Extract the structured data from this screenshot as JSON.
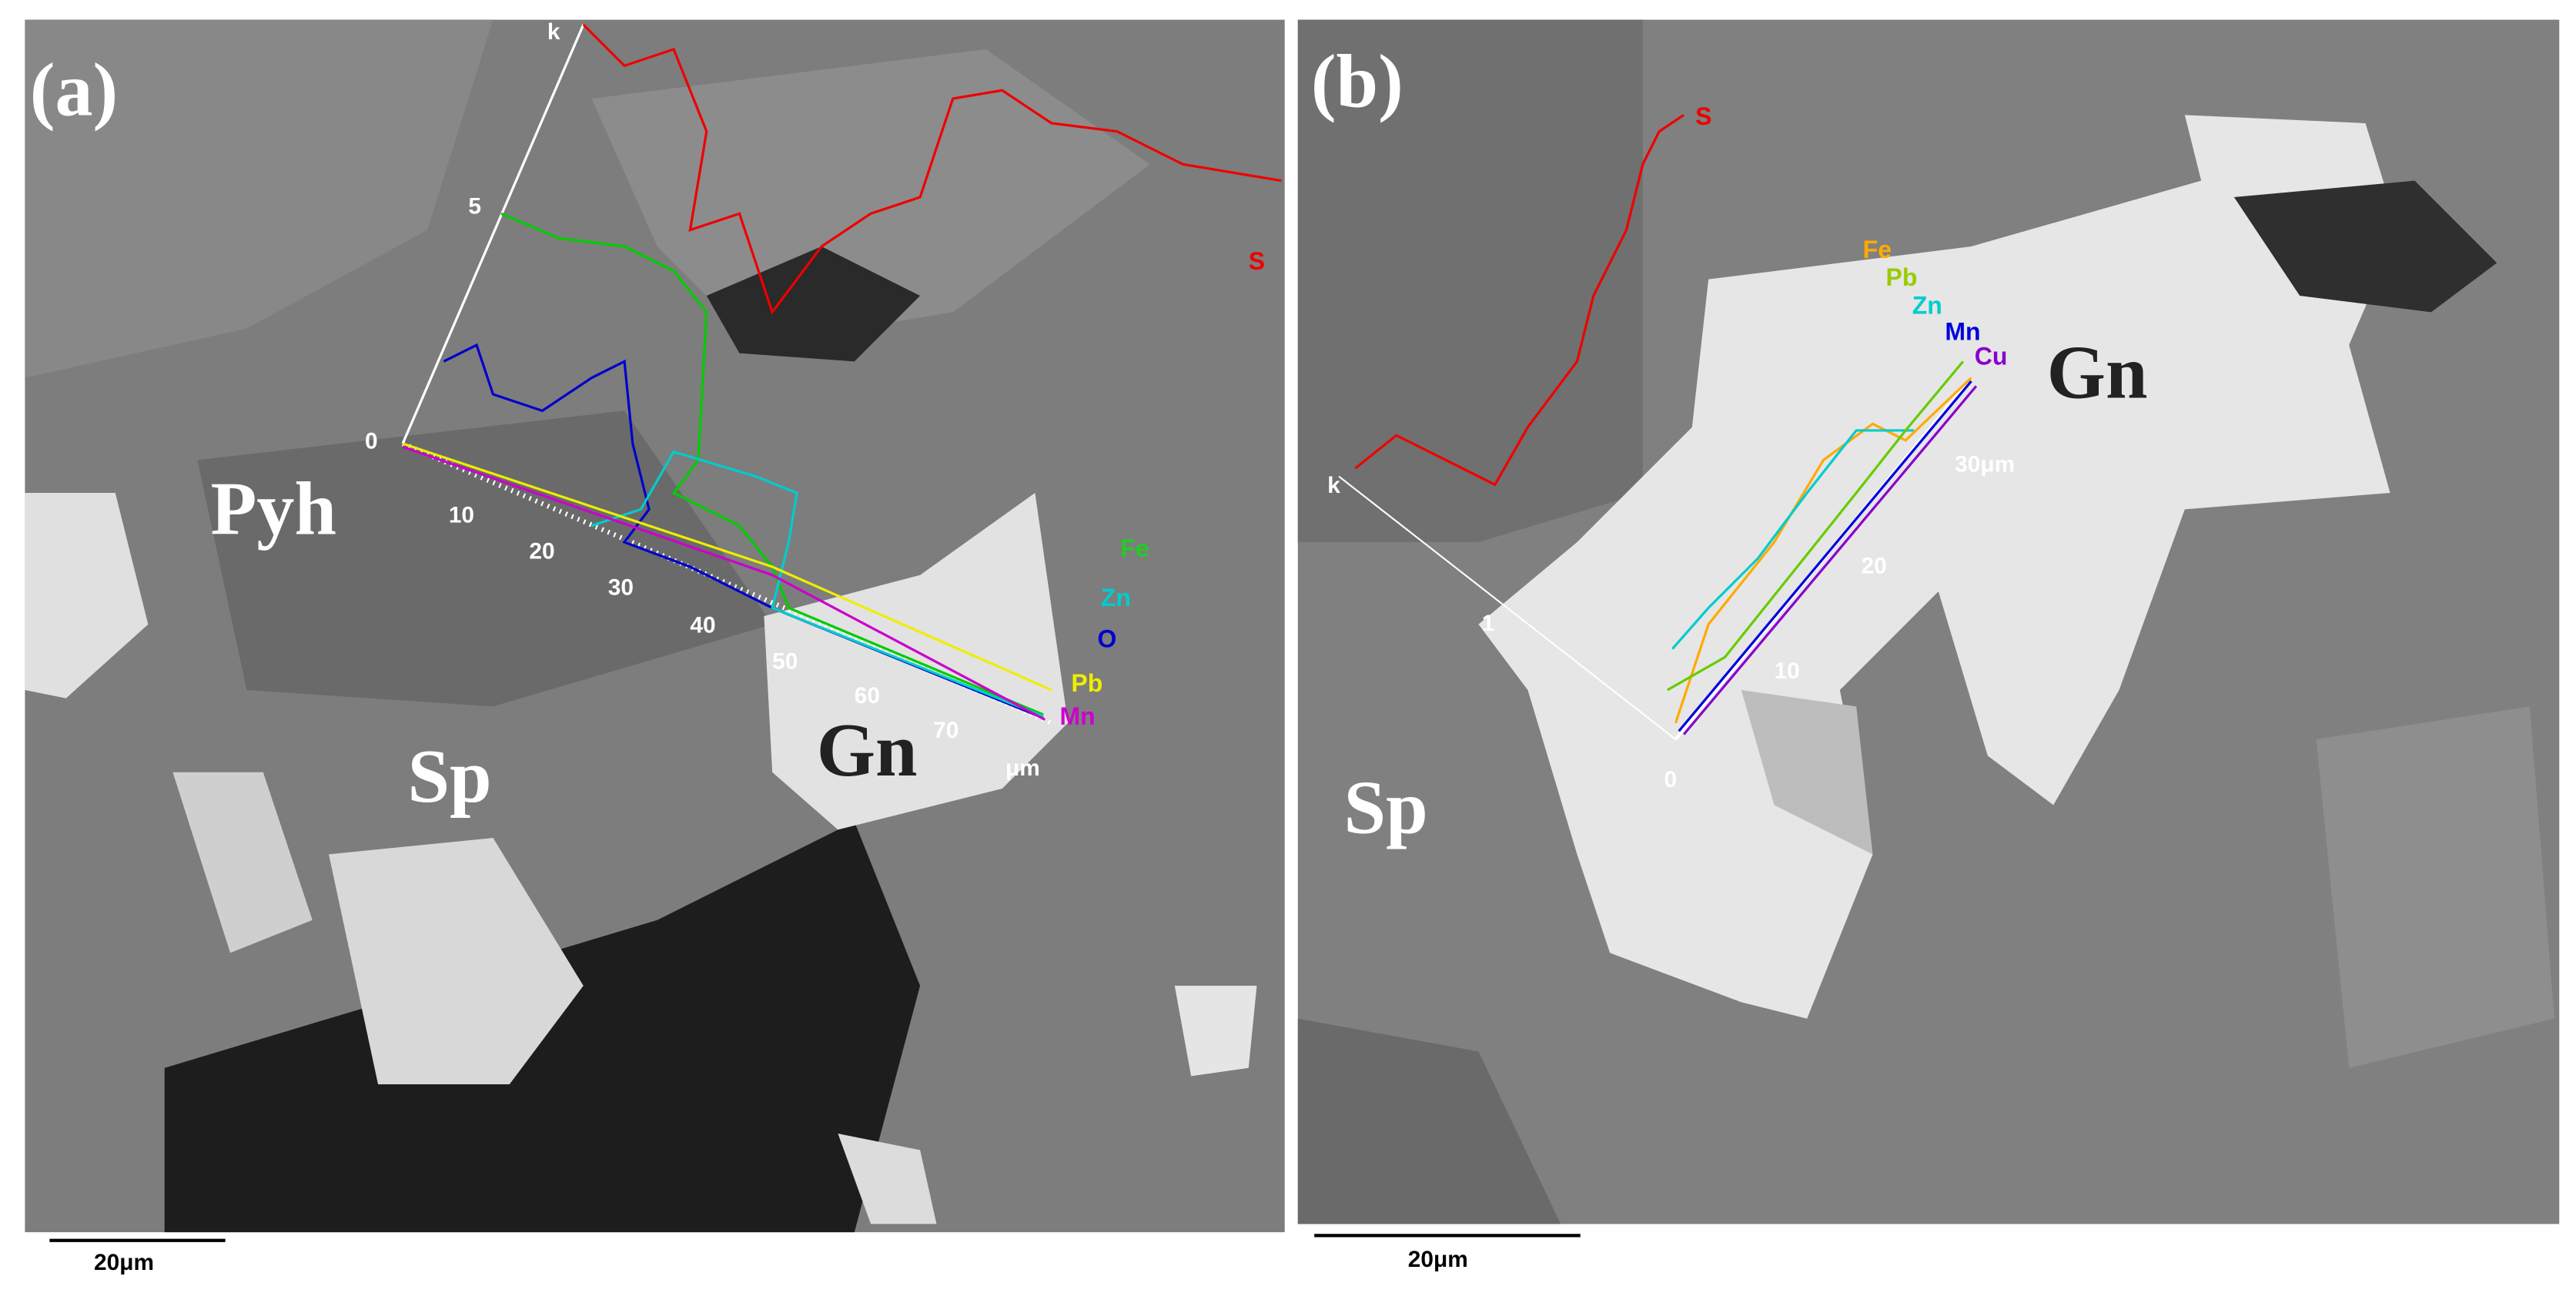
{
  "panels": [
    {
      "label": "(a)",
      "minerals": [
        "Pyh",
        "Sp",
        "Gn"
      ],
      "elements": [
        "S",
        "Fe",
        "Zn",
        "O",
        "Pb",
        "Mn"
      ],
      "scan_ticks": [
        "k",
        "5",
        "0"
      ],
      "distance_ticks": [
        "10",
        "20",
        "30",
        "40",
        "50",
        "60",
        "70"
      ],
      "distance_unit": "μm",
      "scale_bar": "20μm"
    },
    {
      "label": "(b)",
      "minerals": [
        "Gn",
        "Sp"
      ],
      "elements": [
        "S",
        "Fe",
        "Pb",
        "Zn",
        "Mn",
        "Cu"
      ],
      "scan_ticks": [
        "k",
        "1",
        "0"
      ],
      "distance_ticks": [
        "10",
        "20",
        "30μm"
      ],
      "scale_bar": "20μm"
    }
  ]
}
